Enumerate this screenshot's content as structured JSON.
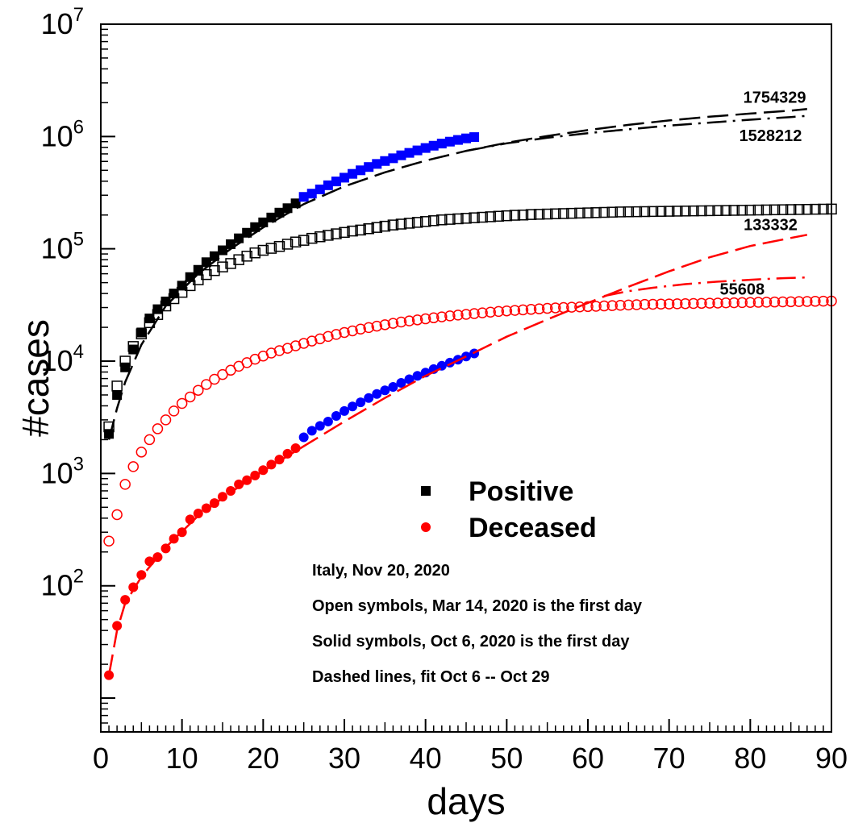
{
  "chart_data": {
    "type": "scatter",
    "xlabel": "days",
    "ylabel": "#cases",
    "xlim": [
      0,
      90
    ],
    "ylim": [
      5,
      10000000
    ],
    "yscale": "log",
    "grid": false,
    "legend_position": "lower-center",
    "x_ticks": [
      "0",
      "10",
      "20",
      "30",
      "40",
      "50",
      "60",
      "70",
      "80",
      "90"
    ],
    "y_ticks": [
      {
        "base": "10",
        "exp": "2",
        "value": 100
      },
      {
        "base": "10",
        "exp": "3",
        "value": 1000
      },
      {
        "base": "10",
        "exp": "4",
        "value": 10000
      },
      {
        "base": "10",
        "exp": "5",
        "value": 100000
      },
      {
        "base": "10",
        "exp": "6",
        "value": 1000000
      },
      {
        "base": "10",
        "exp": "7",
        "value": 10000000
      }
    ],
    "legend": [
      {
        "label": "Positive",
        "marker": "square",
        "color": "#000000"
      },
      {
        "label": "Deceased",
        "marker": "circle",
        "color": "#ff0000"
      }
    ],
    "info_lines": [
      "Italy, Nov 20, 2020",
      "Open symbols, Mar 14, 2020 is the first day",
      "Solid symbols, Oct 6, 2020 is the first day",
      "Dashed lines, fit Oct 6 -- Oct 29"
    ],
    "annotations": [
      {
        "text": "1754329",
        "x": 83,
        "y": 2250000
      },
      {
        "text": "1528212",
        "x": 82.5,
        "y": 1020000
      },
      {
        "text": "133332",
        "x": 82.5,
        "y": 165000
      },
      {
        "text": "55608",
        "x": 79,
        "y": 44000
      }
    ],
    "series": [
      {
        "marker": "open-square",
        "color": "#000000",
        "x": [
          1,
          2,
          3,
          4,
          5,
          6,
          7,
          8,
          9,
          10,
          11,
          12,
          13,
          14,
          15,
          16,
          17,
          18,
          19,
          20,
          21,
          22,
          23,
          24,
          25,
          26,
          27,
          28,
          29,
          30,
          31,
          32,
          33,
          34,
          35,
          36,
          37,
          38,
          39,
          40,
          41,
          42,
          43,
          44,
          45,
          46,
          47,
          48,
          49,
          50,
          51,
          52,
          53,
          54,
          55,
          56,
          57,
          58,
          59,
          60,
          61,
          62,
          63,
          64,
          65,
          66,
          67,
          68,
          69,
          70,
          71,
          72,
          73,
          74,
          75,
          76,
          77,
          78,
          79,
          80,
          81,
          82,
          83,
          84,
          85,
          86,
          87,
          88,
          89,
          90
        ],
        "y": [
          2600,
          6000,
          10000,
          13500,
          17500,
          22000,
          26000,
          31000,
          36000,
          41000,
          47000,
          53000,
          59000,
          64000,
          69000,
          74000,
          80000,
          86000,
          92000,
          97000,
          101000,
          105000,
          110000,
          115000,
          119000,
          124000,
          128000,
          132000,
          136000,
          140000,
          144000,
          147000,
          151000,
          155000,
          159000,
          163000,
          166000,
          169000,
          172000,
          175000,
          178000,
          181000,
          183000,
          185000,
          187000,
          189000,
          191000,
          193000,
          195000,
          197000,
          199000,
          200000,
          202000,
          203000,
          204000,
          205000,
          206000,
          207000,
          208000,
          209000,
          210000,
          211000,
          212000,
          213000,
          213500,
          214000,
          214500,
          215000,
          215500,
          216000,
          216500,
          217000,
          217500,
          218000,
          218500,
          219000,
          219500,
          220000,
          220500,
          221000,
          221500,
          222000,
          222500,
          223000,
          223500,
          224000,
          224500,
          225000,
          225500,
          226000
        ]
      },
      {
        "marker": "filled-square",
        "color": "#000000",
        "x": [
          1,
          2,
          3,
          4,
          5,
          6,
          7,
          8,
          9,
          10,
          11,
          12,
          13,
          14,
          15,
          16,
          17,
          18,
          19,
          20,
          21,
          22,
          23,
          24
        ],
        "y": [
          2250,
          5000,
          8800,
          12700,
          18000,
          24000,
          29000,
          34000,
          40000,
          47000,
          56000,
          65000,
          76000,
          86000,
          97000,
          110000,
          124000,
          139000,
          156000,
          172000,
          190000,
          210000,
          230000,
          254000
        ]
      },
      {
        "marker": "filled-square",
        "color": "#0000ff",
        "x": [
          25,
          26,
          27,
          28,
          29,
          30,
          31,
          32,
          33,
          34,
          35,
          36,
          37,
          38,
          39,
          40,
          41,
          42,
          43,
          44,
          45,
          46
        ],
        "y": [
          290000,
          310000,
          338000,
          368000,
          398000,
          430000,
          465000,
          500000,
          535000,
          570000,
          605000,
          640000,
          680000,
          715000,
          752000,
          790000,
          828000,
          865000,
          900000,
          932000,
          962000,
          988000
        ]
      },
      {
        "marker": "open-circle",
        "color": "#ff0000",
        "x": [
          1,
          2,
          3,
          4,
          5,
          6,
          7,
          8,
          9,
          10,
          11,
          12,
          13,
          14,
          15,
          16,
          17,
          18,
          19,
          20,
          21,
          22,
          23,
          24,
          25,
          26,
          27,
          28,
          29,
          30,
          31,
          32,
          33,
          34,
          35,
          36,
          37,
          38,
          39,
          40,
          41,
          42,
          43,
          44,
          45,
          46,
          47,
          48,
          49,
          50,
          51,
          52,
          53,
          54,
          55,
          56,
          57,
          58,
          59,
          60,
          61,
          62,
          63,
          64,
          65,
          66,
          67,
          68,
          69,
          70,
          71,
          72,
          73,
          74,
          75,
          76,
          77,
          78,
          79,
          80,
          81,
          82,
          83,
          84,
          85,
          86,
          87,
          88,
          89,
          90
        ],
        "y": [
          250,
          430,
          800,
          1150,
          1550,
          2000,
          2500,
          3000,
          3600,
          4200,
          4800,
          5500,
          6200,
          6900,
          7600,
          8300,
          9000,
          9700,
          10400,
          11100,
          11800,
          12400,
          13000,
          13700,
          14400,
          15100,
          15800,
          16600,
          17300,
          18000,
          18600,
          19300,
          19900,
          20500,
          21100,
          21700,
          22300,
          22800,
          23300,
          23800,
          24300,
          24800,
          25300,
          25700,
          26100,
          26500,
          26900,
          27300,
          27700,
          28000,
          28300,
          28600,
          28900,
          29200,
          29500,
          29800,
          30000,
          30200,
          30400,
          30600,
          30800,
          31000,
          31200,
          31400,
          31600,
          31800,
          32000,
          32100,
          32200,
          32300,
          32400,
          32500,
          32600,
          32700,
          32800,
          32900,
          33000,
          33100,
          33200,
          33300,
          33400,
          33500,
          33600,
          33700,
          33800,
          33900,
          34000,
          34100,
          34200,
          34300
        ]
      },
      {
        "marker": "filled-circle",
        "color": "#ff0000",
        "x": [
          1,
          2,
          3,
          4,
          5,
          6,
          7,
          8,
          9,
          10,
          11,
          12,
          13,
          14,
          15,
          16,
          17,
          18,
          19,
          20,
          21,
          22,
          23,
          24
        ],
        "y": [
          16,
          44,
          75,
          97,
          125,
          165,
          180,
          215,
          262,
          300,
          390,
          440,
          490,
          545,
          620,
          700,
          800,
          870,
          960,
          1070,
          1200,
          1330,
          1500,
          1680
        ]
      },
      {
        "marker": "filled-circle",
        "color": "#0000ff",
        "x": [
          25,
          26,
          27,
          28,
          29,
          30,
          31,
          32,
          33,
          34,
          35,
          36,
          37,
          38,
          39,
          40,
          41,
          42,
          43,
          44,
          45,
          46
        ],
        "y": [
          2100,
          2400,
          2650,
          2900,
          3250,
          3600,
          3950,
          4300,
          4700,
          5100,
          5500,
          5900,
          6400,
          6900,
          7400,
          7900,
          8500,
          9100,
          9700,
          10300,
          11000,
          11700
        ]
      }
    ],
    "fit_lines": [
      {
        "color": "#000000",
        "dash": "long",
        "x": [
          1,
          2,
          3,
          5,
          8,
          12,
          16,
          20,
          25,
          30,
          35,
          40,
          45,
          50,
          55,
          60,
          65,
          70,
          75,
          80,
          85,
          87
        ],
        "y": [
          2000,
          3800,
          6500,
          14000,
          31000,
          60000,
          100000,
          155000,
          250000,
          360000,
          480000,
          610000,
          745000,
          880000,
          1010000,
          1140000,
          1270000,
          1390000,
          1500000,
          1600000,
          1700000,
          1754329
        ]
      },
      {
        "color": "#000000",
        "dash": "dashdot",
        "x": [
          45,
          50,
          55,
          60,
          65,
          70,
          75,
          80,
          85,
          87
        ],
        "y": [
          745000,
          870000,
          975000,
          1070000,
          1160000,
          1250000,
          1330000,
          1410000,
          1490000,
          1528212
        ]
      },
      {
        "color": "#ff0000",
        "dash": "long",
        "x": [
          1,
          2,
          3,
          5,
          8,
          12,
          16,
          20,
          25,
          30,
          35,
          40,
          45,
          50,
          55,
          60,
          65,
          70,
          75,
          80,
          85,
          87
        ],
        "y": [
          16,
          40,
          70,
          120,
          220,
          420,
          680,
          1050,
          1750,
          2900,
          4700,
          7400,
          11000,
          16500,
          23500,
          33000,
          46000,
          63000,
          84000,
          106000,
          125000,
          133332
        ]
      },
      {
        "color": "#ff0000",
        "dash": "dashdot",
        "x": [
          62,
          65,
          68,
          72,
          76,
          80,
          84,
          87
        ],
        "y": [
          38000,
          42000,
          45000,
          48500,
          51000,
          53000,
          54800,
          55608
        ]
      }
    ]
  }
}
